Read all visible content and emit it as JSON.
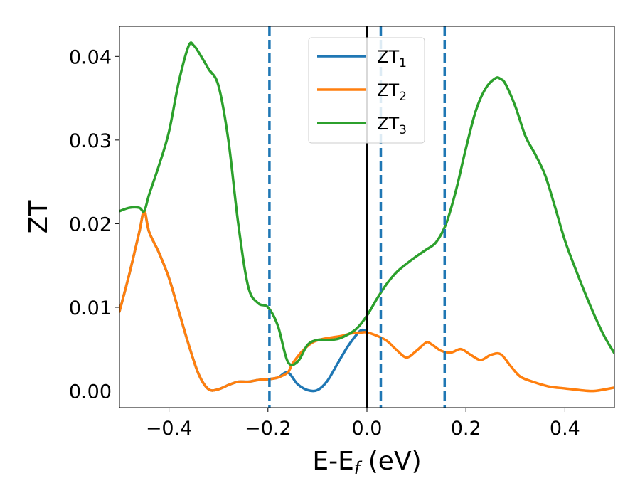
{
  "chart_data": {
    "type": "line",
    "xlabel": "E-E",
    "xlabel_subscript": "f",
    "xlabel_unit": " (eV)",
    "ylabel": "ZT",
    "xlim": [
      -0.5,
      0.5
    ],
    "ylim": [
      -0.002,
      0.0436
    ],
    "xticks": [
      -0.4,
      -0.2,
      0.0,
      0.2,
      0.4
    ],
    "xtick_labels": [
      "−0.4",
      "−0.2",
      "0.0",
      "0.2",
      "0.4"
    ],
    "yticks": [
      0.0,
      0.01,
      0.02,
      0.03,
      0.04
    ],
    "ytick_labels": [
      "0.00",
      "0.01",
      "0.02",
      "0.03",
      "0.04"
    ],
    "grid": false,
    "legend_position": "top-center",
    "vertical_lines": [
      {
        "x": -0.197,
        "style": "dashed",
        "color": "#1f77b4"
      },
      {
        "x": 0.0,
        "style": "solid",
        "color": "#000000"
      },
      {
        "x": 0.028,
        "style": "dashed",
        "color": "#1f77b4"
      },
      {
        "x": 0.157,
        "style": "dashed",
        "color": "#1f77b4"
      }
    ],
    "series": [
      {
        "name": "ZT",
        "subscript": "1",
        "color": "#1f77b4",
        "x": [
          -0.5,
          -0.48,
          -0.46,
          -0.45,
          -0.44,
          -0.42,
          -0.4,
          -0.38,
          -0.36,
          -0.34,
          -0.32,
          -0.3,
          -0.28,
          -0.26,
          -0.24,
          -0.22,
          -0.2,
          -0.18,
          -0.16,
          -0.14,
          -0.12,
          -0.1,
          -0.08,
          -0.06,
          -0.04,
          -0.02,
          -0.01,
          0.0
        ],
        "y": [
          0.0095,
          0.014,
          0.019,
          0.0215,
          0.019,
          0.0165,
          0.0135,
          0.0095,
          0.0055,
          0.002,
          0.0002,
          0.0002,
          0.0007,
          0.0011,
          0.0011,
          0.0013,
          0.0014,
          0.0016,
          0.0022,
          0.0008,
          0.0001,
          0.0001,
          0.0012,
          0.0032,
          0.0052,
          0.0068,
          0.0073,
          0.0071
        ]
      },
      {
        "name": "ZT",
        "subscript": "2",
        "color": "#ff7f0e",
        "x": [
          -0.5,
          -0.48,
          -0.46,
          -0.45,
          -0.44,
          -0.42,
          -0.4,
          -0.38,
          -0.36,
          -0.34,
          -0.32,
          -0.3,
          -0.28,
          -0.26,
          -0.24,
          -0.22,
          -0.2,
          -0.18,
          -0.16,
          -0.15,
          -0.13,
          -0.11,
          -0.09,
          -0.07,
          -0.05,
          -0.03,
          -0.01,
          0.0,
          0.02,
          0.04,
          0.06,
          0.08,
          0.1,
          0.12,
          0.13,
          0.15,
          0.17,
          0.19,
          0.21,
          0.23,
          0.25,
          0.27,
          0.29,
          0.31,
          0.34,
          0.37,
          0.4,
          0.43,
          0.46,
          0.5
        ],
        "y": [
          0.0095,
          0.014,
          0.019,
          0.0215,
          0.019,
          0.0165,
          0.0135,
          0.0095,
          0.0055,
          0.002,
          0.0002,
          0.0002,
          0.0007,
          0.0011,
          0.0011,
          0.0013,
          0.0014,
          0.0016,
          0.0022,
          0.0033,
          0.0048,
          0.0058,
          0.0062,
          0.0064,
          0.0066,
          0.0069,
          0.007,
          0.007,
          0.0066,
          0.006,
          0.0049,
          0.004,
          0.0048,
          0.0058,
          0.0056,
          0.0048,
          0.0046,
          0.005,
          0.0043,
          0.0037,
          0.0043,
          0.0044,
          0.003,
          0.0017,
          0.001,
          0.0005,
          0.0003,
          0.0001,
          0.0,
          0.0004
        ]
      },
      {
        "name": "ZT",
        "subscript": "3",
        "color": "#2ca02c",
        "x": [
          -0.5,
          -0.48,
          -0.46,
          -0.45,
          -0.44,
          -0.42,
          -0.4,
          -0.38,
          -0.36,
          -0.35,
          -0.34,
          -0.32,
          -0.3,
          -0.28,
          -0.26,
          -0.24,
          -0.22,
          -0.2,
          -0.18,
          -0.16,
          -0.14,
          -0.12,
          -0.1,
          -0.08,
          -0.06,
          -0.04,
          -0.02,
          0.0,
          0.02,
          0.04,
          0.06,
          0.08,
          0.1,
          0.12,
          0.14,
          0.16,
          0.18,
          0.2,
          0.22,
          0.24,
          0.26,
          0.27,
          0.28,
          0.3,
          0.32,
          0.34,
          0.36,
          0.38,
          0.4,
          0.42,
          0.44,
          0.46,
          0.48,
          0.5
        ],
        "y": [
          0.0215,
          0.0219,
          0.0219,
          0.0215,
          0.0235,
          0.027,
          0.031,
          0.037,
          0.0413,
          0.0413,
          0.0405,
          0.0385,
          0.0365,
          0.03,
          0.02,
          0.0125,
          0.0105,
          0.01,
          0.0078,
          0.0035,
          0.0035,
          0.0055,
          0.0061,
          0.0061,
          0.0062,
          0.0067,
          0.0075,
          0.009,
          0.011,
          0.0128,
          0.0142,
          0.0152,
          0.0161,
          0.0169,
          0.0178,
          0.02,
          0.024,
          0.029,
          0.0335,
          0.0362,
          0.0374,
          0.0373,
          0.0367,
          0.034,
          0.0305,
          0.0283,
          0.0258,
          0.022,
          0.018,
          0.0148,
          0.0118,
          0.009,
          0.0065,
          0.0045
        ]
      }
    ]
  }
}
